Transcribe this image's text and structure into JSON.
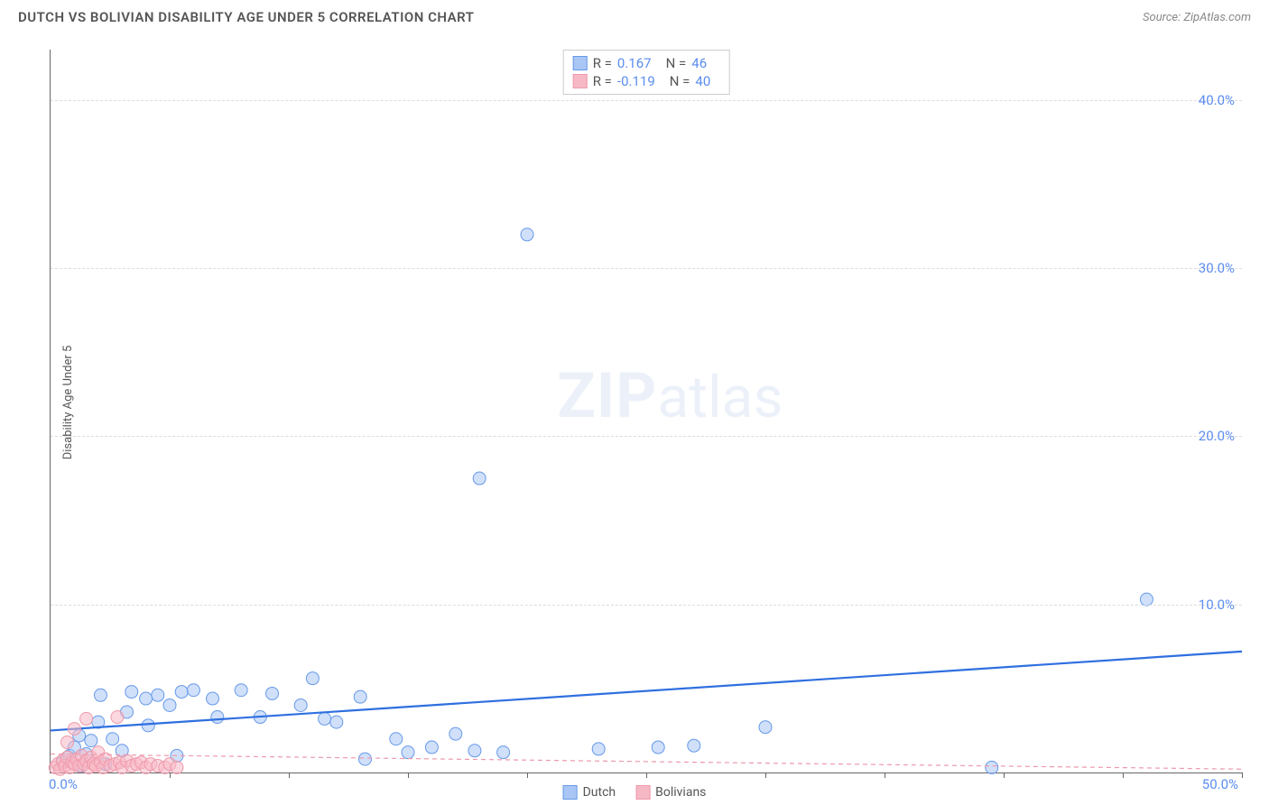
{
  "header": {
    "title": "DUTCH VS BOLIVIAN DISABILITY AGE UNDER 5 CORRELATION CHART",
    "source_prefix": "Source: ",
    "source_name": "ZipAtlas.com"
  },
  "chart": {
    "type": "scatter",
    "ylabel": "Disability Age Under 5",
    "xlim": [
      0,
      50
    ],
    "ylim": [
      0,
      43
    ],
    "xorigin_label": "0.0%",
    "xmax_label": "50.0%",
    "ytick_labels": [
      "10.0%",
      "20.0%",
      "30.0%",
      "40.0%"
    ],
    "ytick_values": [
      10,
      20,
      30,
      40
    ],
    "xtick_values": [
      5,
      10,
      15,
      20,
      25,
      30,
      35,
      40,
      45,
      50
    ],
    "grid_color": "#dddddd",
    "axis_color": "#666666",
    "tick_label_color": "#5b8def",
    "background_color": "#ffffff",
    "watermark": "ZIPatlas",
    "series": [
      {
        "name": "Dutch",
        "color_fill": "#a9c6f5",
        "color_stroke": "#6699e8",
        "marker_radius": 7,
        "fill_opacity": 0.55,
        "trend": {
          "y_intercept": 2.5,
          "y_at_xmax": 7.2,
          "stroke": "#2f6fe0",
          "width": 2.2,
          "dash": "none"
        },
        "points": [
          [
            0.5,
            0.6
          ],
          [
            0.8,
            1.0
          ],
          [
            1.0,
            1.5
          ],
          [
            1.2,
            2.2
          ],
          [
            1.3,
            0.4
          ],
          [
            1.5,
            1.1
          ],
          [
            1.7,
            1.9
          ],
          [
            2.0,
            3.0
          ],
          [
            2.1,
            4.6
          ],
          [
            2.3,
            0.5
          ],
          [
            2.6,
            2.0
          ],
          [
            3.0,
            1.3
          ],
          [
            3.2,
            3.6
          ],
          [
            3.4,
            4.8
          ],
          [
            4.0,
            4.4
          ],
          [
            4.1,
            2.8
          ],
          [
            4.5,
            4.6
          ],
          [
            5.0,
            4.0
          ],
          [
            5.3,
            1.0
          ],
          [
            5.5,
            4.8
          ],
          [
            6.0,
            4.9
          ],
          [
            6.8,
            4.4
          ],
          [
            7.0,
            3.3
          ],
          [
            8.0,
            4.9
          ],
          [
            8.8,
            3.3
          ],
          [
            9.3,
            4.7
          ],
          [
            10.5,
            4.0
          ],
          [
            11.0,
            5.6
          ],
          [
            11.5,
            3.2
          ],
          [
            12.0,
            3.0
          ],
          [
            13.0,
            4.5
          ],
          [
            13.2,
            0.8
          ],
          [
            14.5,
            2.0
          ],
          [
            15.0,
            1.2
          ],
          [
            16.0,
            1.5
          ],
          [
            17.0,
            2.3
          ],
          [
            17.8,
            1.3
          ],
          [
            18.0,
            17.5
          ],
          [
            19.0,
            1.2
          ],
          [
            20.0,
            32.0
          ],
          [
            23.0,
            1.4
          ],
          [
            25.5,
            1.5
          ],
          [
            27.0,
            1.6
          ],
          [
            30.0,
            2.7
          ],
          [
            39.5,
            0.3
          ],
          [
            46.0,
            10.3
          ]
        ]
      },
      {
        "name": "Bolivians",
        "color_fill": "#f7b8c5",
        "color_stroke": "#ef99ab",
        "marker_radius": 7,
        "fill_opacity": 0.55,
        "trend": {
          "y_intercept": 1.1,
          "y_at_xmax": 0.2,
          "stroke": "#ef99ab",
          "width": 1.2,
          "dash": "5,4"
        },
        "points": [
          [
            0.2,
            0.3
          ],
          [
            0.3,
            0.5
          ],
          [
            0.4,
            0.2
          ],
          [
            0.5,
            0.7
          ],
          [
            0.6,
            0.4
          ],
          [
            0.7,
            0.9
          ],
          [
            0.7,
            1.8
          ],
          [
            0.8,
            0.3
          ],
          [
            0.9,
            0.6
          ],
          [
            1.0,
            0.5
          ],
          [
            1.0,
            2.6
          ],
          [
            1.1,
            0.8
          ],
          [
            1.2,
            0.4
          ],
          [
            1.3,
            1.0
          ],
          [
            1.4,
            0.5
          ],
          [
            1.5,
            0.7
          ],
          [
            1.5,
            3.2
          ],
          [
            1.6,
            0.3
          ],
          [
            1.7,
            0.9
          ],
          [
            1.8,
            0.5
          ],
          [
            1.9,
            0.4
          ],
          [
            2.0,
            1.2
          ],
          [
            2.1,
            0.6
          ],
          [
            2.2,
            0.3
          ],
          [
            2.3,
            0.8
          ],
          [
            2.5,
            0.4
          ],
          [
            2.7,
            0.5
          ],
          [
            2.8,
            3.3
          ],
          [
            2.9,
            0.6
          ],
          [
            3.0,
            0.3
          ],
          [
            3.2,
            0.7
          ],
          [
            3.4,
            0.4
          ],
          [
            3.6,
            0.5
          ],
          [
            3.8,
            0.6
          ],
          [
            4.0,
            0.3
          ],
          [
            4.2,
            0.5
          ],
          [
            4.5,
            0.4
          ],
          [
            4.8,
            0.3
          ],
          [
            5.0,
            0.5
          ],
          [
            5.3,
            0.3
          ]
        ]
      }
    ],
    "stats": [
      {
        "swatch_fill": "#a9c6f5",
        "swatch_stroke": "#6699e8",
        "r_label": "R =",
        "r_value": "0.167",
        "n_label": "N =",
        "n_value": "46"
      },
      {
        "swatch_fill": "#f7b8c5",
        "swatch_stroke": "#ef99ab",
        "r_label": "R =",
        "r_value": "-0.119",
        "n_label": "N =",
        "n_value": "40"
      }
    ],
    "legend": [
      {
        "swatch_fill": "#a9c6f5",
        "swatch_stroke": "#6699e8",
        "label": "Dutch"
      },
      {
        "swatch_fill": "#f7b8c5",
        "swatch_stroke": "#ef99ab",
        "label": "Bolivians"
      }
    ]
  }
}
